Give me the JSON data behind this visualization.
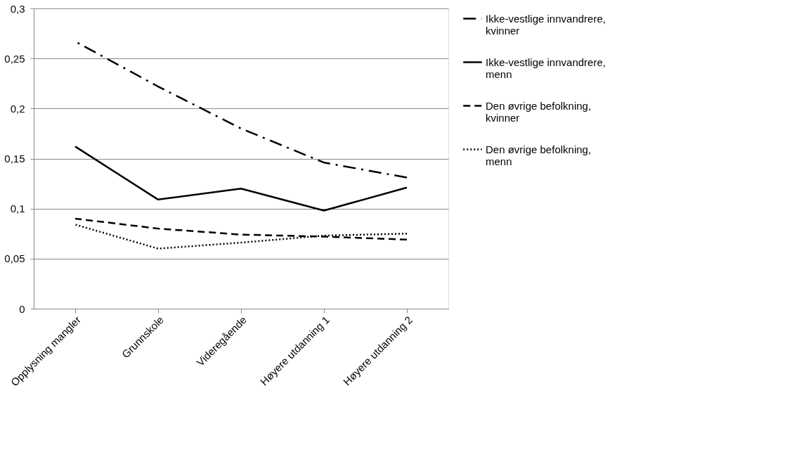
{
  "chart_data": {
    "type": "line",
    "categories": [
      "Opplysning  mangler",
      "Grunnskole",
      "Videregående",
      "Høyere utdanning 1",
      "Høyere utdanning 2"
    ],
    "series": [
      {
        "name": "Ikke-vestlige innvandrere, kvinner",
        "color": "#000000",
        "line_style": "dashdot",
        "values": [
          0.267,
          0.222,
          0.18,
          0.146,
          0.131
        ]
      },
      {
        "name": "Ikke-vestlige innvandrere, menn",
        "color": "#000000",
        "line_style": "solid",
        "values": [
          0.162,
          0.109,
          0.12,
          0.098,
          0.121
        ]
      },
      {
        "name": "Den øvrige befolkning, kvinner",
        "color": "#000000",
        "line_style": "dashed",
        "values": [
          0.09,
          0.08,
          0.074,
          0.072,
          0.069
        ]
      },
      {
        "name": "Den øvrige befolkning, menn",
        "color": "#000000",
        "line_style": "dotted",
        "values": [
          0.084,
          0.06,
          0.066,
          0.073,
          0.075
        ]
      }
    ],
    "ylim": [
      0,
      0.3
    ],
    "yticks": [
      {
        "value": 0,
        "label": "0"
      },
      {
        "value": 0.05,
        "label": "0,05"
      },
      {
        "value": 0.1,
        "label": "0,1"
      },
      {
        "value": 0.15,
        "label": "0,15"
      },
      {
        "value": 0.2,
        "label": "0,2"
      },
      {
        "value": 0.25,
        "label": "0,25"
      },
      {
        "value": 0.3,
        "label": "0,3"
      }
    ],
    "grid": "y",
    "legend": "right",
    "marker": "none"
  }
}
